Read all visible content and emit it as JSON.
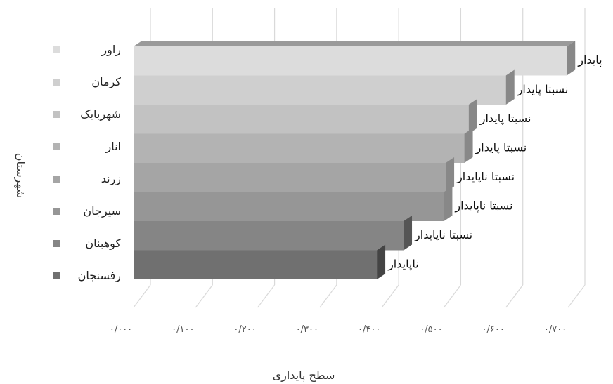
{
  "chart_data": {
    "type": "bar",
    "orientation": "horizontal",
    "style": "3d",
    "grid": true,
    "legend_position": "left",
    "xlabel": "سطح پایداری",
    "ylabel": "شهرستان",
    "xlim": [
      0,
      0.7
    ],
    "x_ticks": [
      "۰/۰۰۰",
      "۰/۱۰۰",
      "۰/۲۰۰",
      "۰/۳۰۰",
      "۰/۴۰۰",
      "۰/۵۰۰",
      "۰/۶۰۰",
      "۰/۷۰۰"
    ],
    "categories": [
      "راور",
      "کرمان",
      "شهربابک",
      "انار",
      "زرند",
      "سیرجان",
      "کوهبنان",
      "رفسنجان"
    ],
    "values": [
      0.698,
      0.6,
      0.54,
      0.533,
      0.503,
      0.5,
      0.435,
      0.392
    ],
    "labels": [
      "پایدار",
      "نسبتا پایدار",
      "نسبتا پایدار",
      "نسبتا پایدار",
      "نسبتا ناپایدار",
      "نسبتا ناپایدار",
      "نسبتا ناپایدار",
      "ناپایدار"
    ],
    "colors": [
      "#dcdcdc",
      "#cfcfcf",
      "#c2c2c2",
      "#b3b3b3",
      "#a5a5a5",
      "#969696",
      "#858585",
      "#707070"
    ]
  }
}
